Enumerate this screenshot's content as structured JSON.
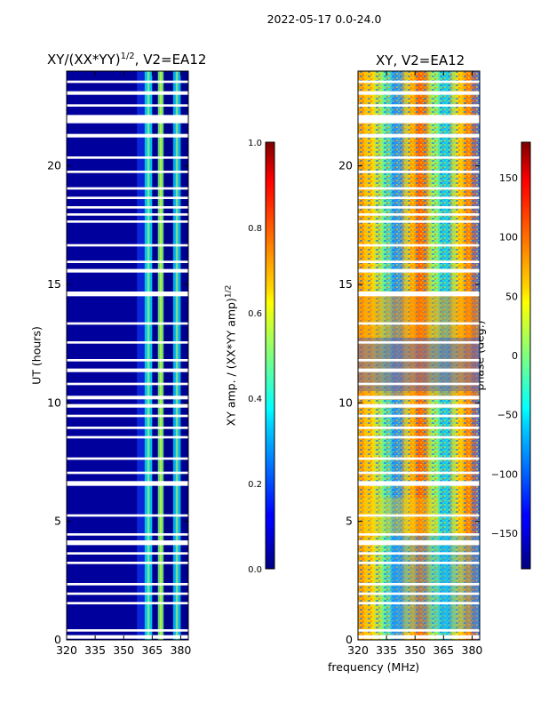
{
  "figure_title": "2022-05-17 0.0-24.0",
  "chart_data": [
    {
      "type": "heatmap",
      "title": "XY/(XX*YY)^(1/2), V2=EA12",
      "title_main": "XY/(XX*YY)",
      "title_exp": "1/2",
      "title_tail": ", V2=EA12",
      "xlabel": "",
      "ylabel": "UT (hours)",
      "x_range": [
        320,
        384
      ],
      "y_range": [
        0,
        24
      ],
      "x_ticks": [
        320,
        335,
        350,
        365,
        380
      ],
      "y_ticks": [
        0,
        5,
        10,
        15,
        20
      ],
      "bright_bands_MHz": [
        [
          361,
          365
        ],
        [
          368,
          371
        ],
        [
          376,
          380
        ]
      ],
      "colorbar": {
        "label": "XY amp. / (XX*YY amp)^(1/2)",
        "label_main": "XY amp. / (XX*YY amp)",
        "label_exp": "1/2",
        "range": [
          0.0,
          1.0
        ],
        "ticks": [
          "0.0",
          "0.2",
          "0.4",
          "0.6",
          "0.8",
          "1.0"
        ],
        "colormap": "jet"
      }
    },
    {
      "type": "heatmap",
      "title": "XY, V2=EA12",
      "xlabel": "frequency (MHz)",
      "ylabel": "",
      "x_range": [
        320,
        384
      ],
      "y_range": [
        0,
        24
      ],
      "x_ticks": [
        320,
        335,
        350,
        365,
        380
      ],
      "y_ticks": [
        0,
        5,
        10,
        15,
        20
      ],
      "colorbar": {
        "label": "phase (deg.)",
        "range": [
          -180,
          180
        ],
        "ticks": [
          "−150",
          "−100",
          "−50",
          "0",
          "50",
          "100",
          "150"
        ],
        "colormap": "jet"
      }
    }
  ],
  "flagged_gaps_UT_hours": [
    [
      0.05,
      0.2
    ],
    [
      0.35,
      0.45
    ],
    [
      1.5,
      1.6
    ],
    [
      1.9,
      2.0
    ],
    [
      2.3,
      2.4
    ],
    [
      3.2,
      3.3
    ],
    [
      3.6,
      3.7
    ],
    [
      4.0,
      4.2
    ],
    [
      4.4,
      4.5
    ],
    [
      5.2,
      5.3
    ],
    [
      6.5,
      6.7
    ],
    [
      7.0,
      7.1
    ],
    [
      7.6,
      7.7
    ],
    [
      8.5,
      8.6
    ],
    [
      8.9,
      9.0
    ],
    [
      9.4,
      9.5
    ],
    [
      9.8,
      9.95
    ],
    [
      10.15,
      10.3
    ],
    [
      10.75,
      10.85
    ],
    [
      11.3,
      11.45
    ],
    [
      11.75,
      11.85
    ],
    [
      12.5,
      12.6
    ],
    [
      13.3,
      13.4
    ],
    [
      14.5,
      14.7
    ],
    [
      15.5,
      15.65
    ],
    [
      15.9,
      16.0
    ],
    [
      16.6,
      16.7
    ],
    [
      17.6,
      17.7
    ],
    [
      17.9,
      18.0
    ],
    [
      18.2,
      18.3
    ],
    [
      18.6,
      18.7
    ],
    [
      19.0,
      19.1
    ],
    [
      19.7,
      19.8
    ],
    [
      20.3,
      20.4
    ],
    [
      21.2,
      21.35
    ],
    [
      21.8,
      22.15
    ],
    [
      22.5,
      22.6
    ],
    [
      23.0,
      23.15
    ],
    [
      23.5,
      23.6
    ]
  ]
}
